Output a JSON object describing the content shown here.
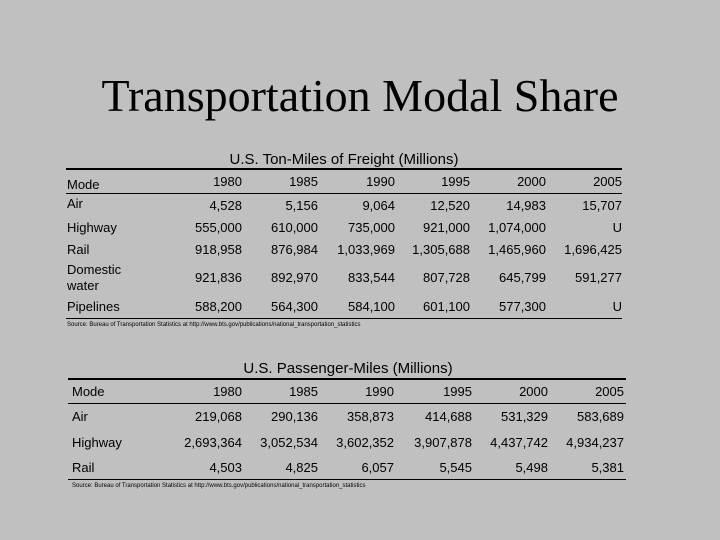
{
  "title": "Transportation Modal Share",
  "freight": {
    "caption": "U.S. Ton-Miles of Freight (Millions)",
    "header": [
      "Mode",
      "1980",
      "1985",
      "1990",
      "1995",
      "2000",
      "2005"
    ],
    "rows": [
      {
        "mode": "Air",
        "values": [
          "4,528",
          "5,156",
          "9,064",
          "12,520",
          "14,983",
          "15,707"
        ]
      },
      {
        "mode": "Highway",
        "values": [
          "555,000",
          "610,000",
          "735,000",
          "921,000",
          "1,074,000",
          "U"
        ]
      },
      {
        "mode": "Rail",
        "values": [
          "918,958",
          "876,984",
          "1,033,969",
          "1,305,688",
          "1,465,960",
          "1,696,425"
        ]
      },
      {
        "mode": "Domestic water",
        "values": [
          "921,836",
          "892,970",
          "833,544",
          "807,728",
          "645,799",
          "591,277"
        ]
      },
      {
        "mode": "Pipelines",
        "values": [
          "588,200",
          "564,300",
          "584,100",
          "601,100",
          "577,300",
          "U"
        ]
      }
    ],
    "source": "Source: Bureau of Transportation Statistics at http://www.bts.gov/publications/national_transportation_statistics"
  },
  "passenger": {
    "caption": "U.S. Passenger-Miles (Millions)",
    "header": [
      "Mode",
      "1980",
      "1985",
      "1990",
      "1995",
      "2000",
      "2005"
    ],
    "rows": [
      {
        "mode": "Air",
        "values": [
          "219,068",
          "290,136",
          "358,873",
          "414,688",
          "531,329",
          "583,689"
        ]
      },
      {
        "mode": "Highway",
        "values": [
          "2,693,364",
          "3,052,534",
          "3,602,352",
          "3,907,878",
          "4,437,742",
          "4,934,237"
        ]
      },
      {
        "mode": "Rail",
        "values": [
          "4,503",
          "4,825",
          "6,057",
          "5,545",
          "5,498",
          "5,381"
        ]
      }
    ],
    "source": "Source: Bureau of Transportation Statistics at http://www.bts.gov/publications/national_transportation_statistics"
  }
}
